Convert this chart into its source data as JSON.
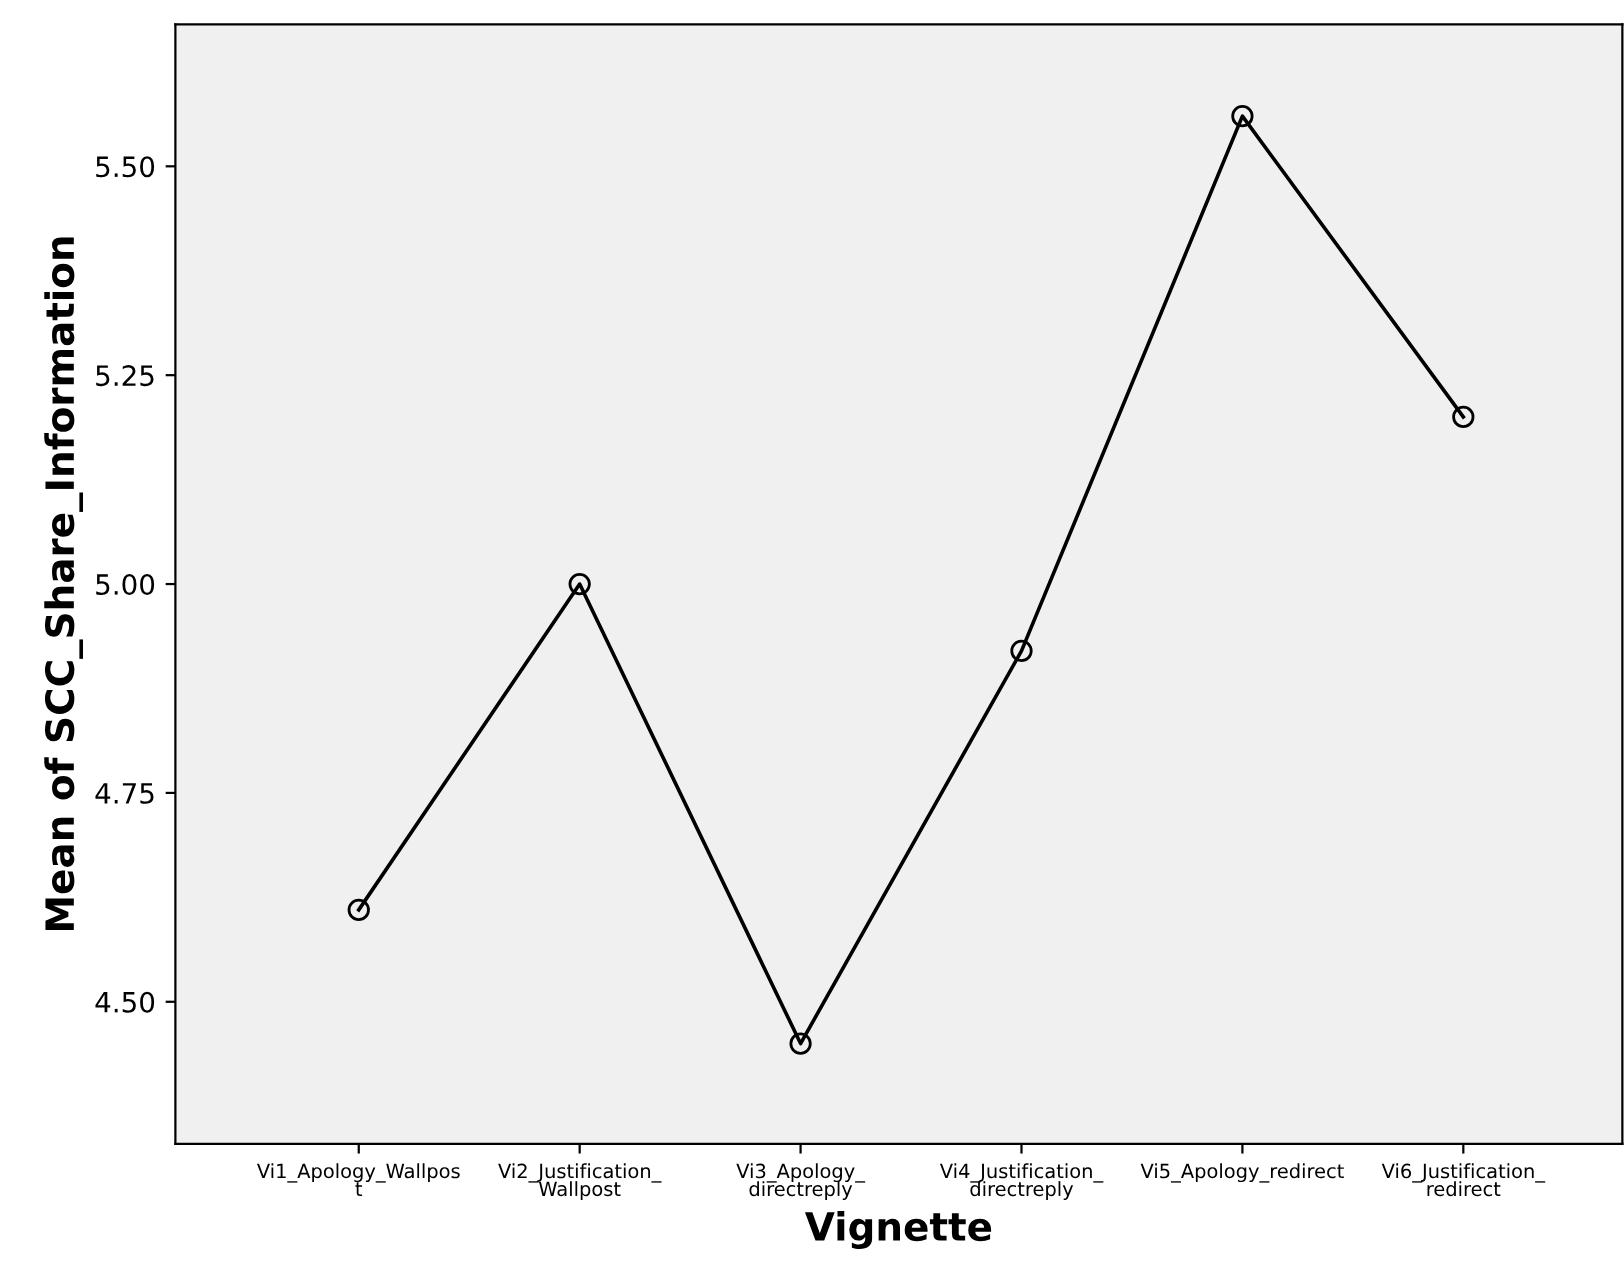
{
  "chart_data": {
    "type": "line",
    "xlabel": "Vignette",
    "ylabel": "Mean of SCC_Share_Information",
    "categories": [
      "Vi1_Apology_Wallpos\nt",
      "Vi2_Justification_\nWallpost",
      "Vi3_Apology_\ndirectreply",
      "Vi4_Justification_\ndirectreply",
      "Vi5_Apology_redirect",
      "Vi6_Justification_\nredirect"
    ],
    "series": [
      {
        "color": "#000000",
        "values": [
          4.61,
          5.0,
          4.45,
          4.92,
          5.56,
          5.2
        ]
      }
    ],
    "ylim": [
      4.33,
      5.67
    ],
    "yticks": [
      {
        "value": 4.5,
        "label": "4.50"
      },
      {
        "value": 4.75,
        "label": "4.75"
      },
      {
        "value": 5.0,
        "label": "5.00"
      },
      {
        "value": 5.25,
        "label": "5.25"
      },
      {
        "value": 5.5,
        "label": "5.50"
      }
    ],
    "marker": "circle",
    "line_style": "solid",
    "grid": false,
    "legend": false
  }
}
